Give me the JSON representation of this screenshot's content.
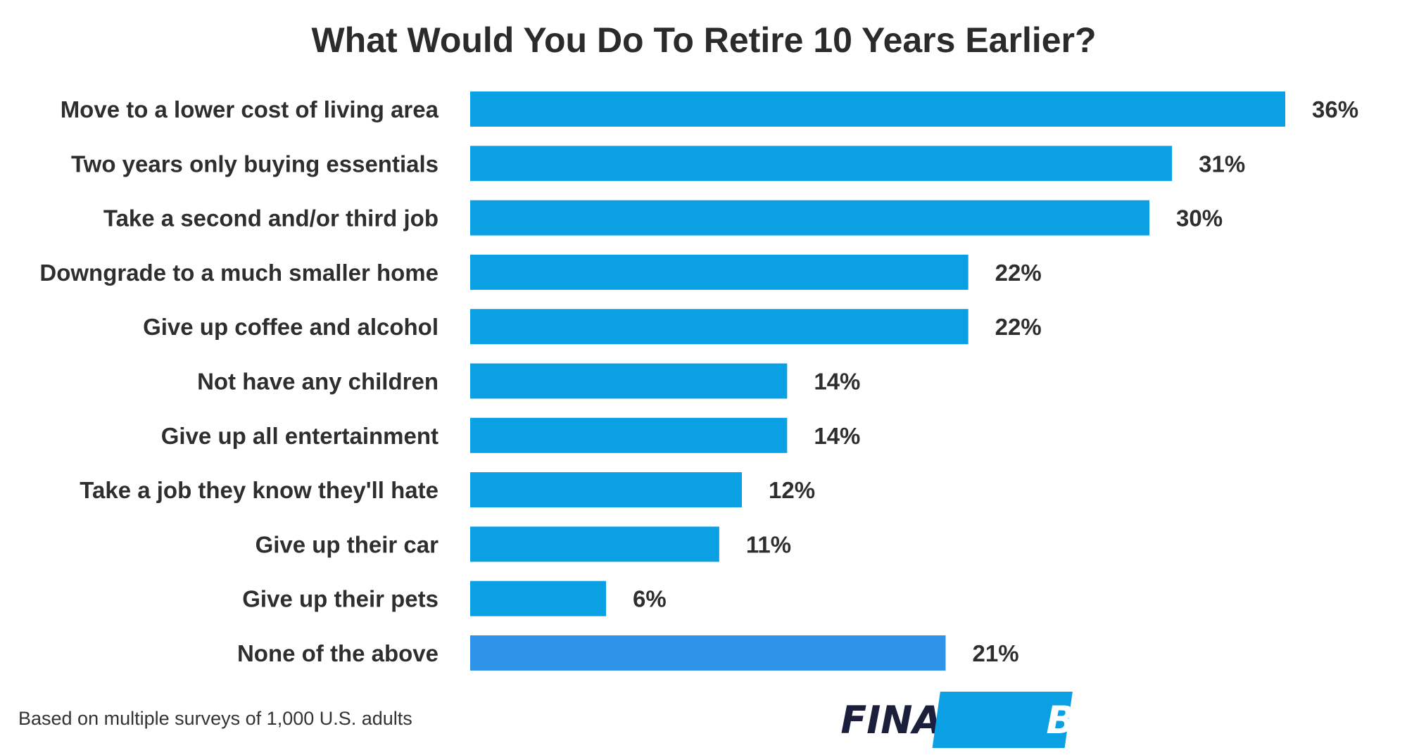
{
  "chart_data": {
    "type": "bar",
    "orientation": "horizontal",
    "title": "What Would You Do To Retire 10 Years Earlier?",
    "categories": [
      "Move to a lower cost of living area",
      "Two years only buying essentials",
      "Take a second and/or third job",
      "Downgrade to a much smaller home",
      "Give up coffee and alcohol",
      "Not have any children",
      "Give up all entertainment",
      "Take a job they know they'll hate",
      "Give up their car",
      "Give up their pets",
      "None of the above"
    ],
    "values": [
      36,
      31,
      30,
      22,
      22,
      14,
      14,
      12,
      11,
      6,
      21
    ],
    "value_labels": [
      "36%",
      "31%",
      "30%",
      "22%",
      "22%",
      "14%",
      "14%",
      "12%",
      "11%",
      "6%",
      "21%"
    ],
    "unit": "%",
    "xlim": [
      0,
      36
    ],
    "colors": {
      "bar": "#0ba0e4",
      "highlight_bar": "#3093ea",
      "text": "#2e2e2e"
    },
    "highlight_index": 10,
    "grid": false,
    "legend": "none"
  },
  "footnote": "Based on multiple surveys of 1,000 U.S. adults",
  "logo": {
    "part1": "FINANCE",
    "part2": "BUZZ",
    "colors": {
      "text_dark": "#1b1f3b",
      "box": "#0ba0e4"
    }
  }
}
